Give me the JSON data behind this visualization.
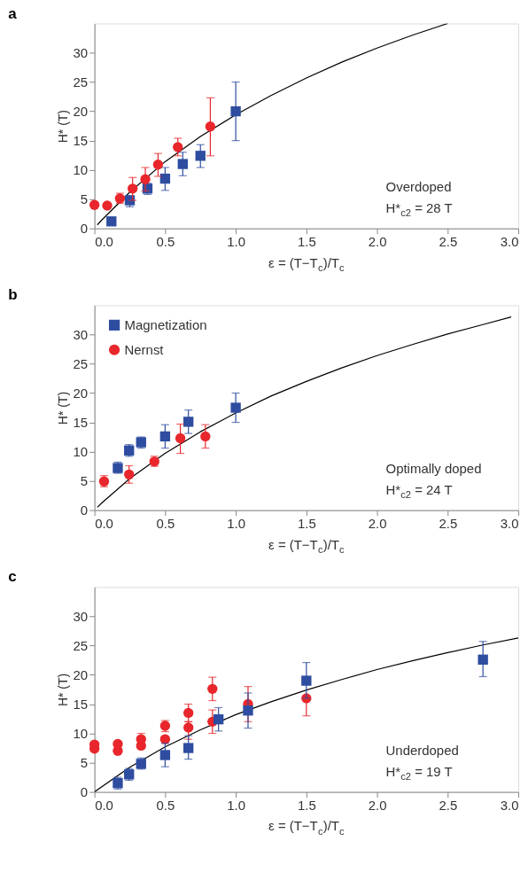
{
  "chart_data": [
    {
      "type": "scatter",
      "title": "a",
      "xlabel": "ε = (T−T$_{c}$)/T$_{c}$",
      "ylabel": "H* (T)",
      "xlim": [
        0,
        3
      ],
      "ylim": [
        0,
        35
      ],
      "xticks": [
        {
          "value": 0,
          "label": "0.0"
        },
        0.5,
        {
          "value": 1,
          "label": "1.0"
        },
        1.5,
        {
          "value": 2,
          "label": "2.0"
        },
        2.5,
        {
          "value": 3,
          "label": "3.0"
        }
      ],
      "yticks": [
        0,
        5,
        10,
        15,
        20,
        25,
        30
      ],
      "grid": false,
      "legend": false,
      "annotations": [
        "Overdoped",
        "H*$_{c2}$ = 28 T"
      ],
      "series": [
        {
          "type": "line",
          "color": "#000000",
          "marker": "none",
          "x": [
            0.02,
            0.05,
            0.25,
            0.5,
            0.75,
            1.0,
            1.25,
            1.5,
            1.75,
            2.0,
            2.25,
            2.5
          ],
          "values": [
            0.6,
            1.4,
            6.2,
            11.4,
            15.7,
            19.4,
            22.7,
            25.7,
            28.4,
            30.8,
            33.0,
            35.0
          ]
        },
        {
          "color": "#2e4da0",
          "marker": "square",
          "x": [
            0.12,
            0.25,
            0.375,
            0.5,
            0.625,
            0.75,
            1.0
          ],
          "values": [
            1.2,
            4.8,
            6.8,
            8.5,
            11.0,
            12.4,
            20.0
          ],
          "errors": [
            null,
            [
              3.7,
              5.6
            ],
            [
              5.8,
              7.7
            ],
            [
              6.5,
              10.4
            ],
            [
              9.0,
              13.0
            ],
            [
              10.4,
              14.3
            ],
            [
              15.0,
              25.0
            ]
          ]
        },
        {
          "color": "#e8262b",
          "marker": "circle",
          "x": [
            0.0,
            0.09,
            0.18,
            0.27,
            0.36,
            0.45,
            0.59,
            0.82
          ],
          "values": [
            4.0,
            3.9,
            5.1,
            6.8,
            8.4,
            10.9,
            13.9,
            17.4
          ],
          "errors": [
            null,
            null,
            [
              4.3,
              6.0
            ],
            [
              4.8,
              8.7
            ],
            [
              6.4,
              10.4
            ],
            [
              8.9,
              12.8
            ],
            [
              12.4,
              15.4
            ],
            [
              12.4,
              22.3
            ]
          ]
        }
      ]
    },
    {
      "type": "scatter",
      "title": "b",
      "xlabel": "ε = (T−T$_{c}$)/T$_{c}$",
      "ylabel": "H* (T)",
      "xlim": [
        0,
        3
      ],
      "ylim": [
        0,
        35
      ],
      "xticks": [
        {
          "value": 0,
          "label": "0.0"
        },
        0.5,
        {
          "value": 1,
          "label": "1.0"
        },
        1.5,
        {
          "value": 2,
          "label": "2.0"
        },
        2.5,
        {
          "value": 3,
          "label": "3.0"
        }
      ],
      "yticks": [
        0,
        5,
        10,
        15,
        20,
        25,
        30
      ],
      "grid": false,
      "legend": "top left",
      "annotations": [
        "Optimally doped",
        "H*$_{c2}$ = 24 T"
      ],
      "series": [
        {
          "type": "line",
          "color": "#000000",
          "marker": "none",
          "x": [
            0.02,
            0.05,
            0.25,
            0.5,
            0.75,
            1.0,
            1.25,
            1.5,
            1.75,
            2.0,
            2.25,
            2.5,
            2.75,
            2.95
          ],
          "values": [
            0.5,
            1.2,
            5.4,
            9.7,
            13.4,
            16.6,
            19.5,
            22.0,
            24.3,
            26.4,
            28.3,
            30.1,
            31.7,
            33.0
          ]
        },
        {
          "name": "Magnetization",
          "color": "#2e4da0",
          "marker": "square",
          "x": [
            0.165,
            0.245,
            0.33,
            0.5,
            0.665,
            1.0
          ],
          "values": [
            7.2,
            10.2,
            11.6,
            12.6,
            15.1,
            17.5
          ],
          "errors": [
            [
              6.3,
              8.2
            ],
            [
              9.2,
              11.2
            ],
            [
              10.6,
              12.5
            ],
            [
              10.6,
              14.6
            ],
            [
              13.1,
              17.1
            ],
            [
              15.0,
              20.0
            ]
          ]
        },
        {
          "name": "Nernst",
          "color": "#e8262b",
          "marker": "circle",
          "x": [
            0.068,
            0.245,
            0.424,
            0.608,
            0.785
          ],
          "values": [
            4.9,
            6.1,
            8.3,
            12.3,
            12.6
          ],
          "errors": [
            [
              4.0,
              5.9
            ],
            [
              4.6,
              7.6
            ],
            [
              7.5,
              9.2
            ],
            [
              9.7,
              14.7
            ],
            [
              10.6,
              14.6
            ]
          ]
        }
      ]
    },
    {
      "type": "scatter",
      "title": "c",
      "xlabel": "ε = (T−T$_{c}$)/T$_{c}$",
      "ylabel": "H* (T)",
      "xlim": [
        0,
        3
      ],
      "ylim": [
        0,
        35
      ],
      "xticks": [
        {
          "value": 0,
          "label": "0.0"
        },
        0.5,
        {
          "value": 1,
          "label": "1.0"
        },
        1.5,
        {
          "value": 2,
          "label": "2.0"
        },
        2.5,
        {
          "value": 3,
          "label": "3.0"
        }
      ],
      "yticks": [
        0,
        5,
        10,
        15,
        20,
        25,
        30
      ],
      "grid": false,
      "legend": false,
      "annotations": [
        "Underdoped",
        "H*$_{c2}$ = 19 T"
      ],
      "series": [
        {
          "type": "line",
          "color": "#000000",
          "marker": "none",
          "x": [
            0.0,
            0.25,
            0.5,
            0.75,
            1.0,
            1.25,
            1.5,
            1.75,
            2.0,
            2.25,
            2.5,
            2.75,
            3.0
          ],
          "values": [
            0.0,
            4.2,
            7.7,
            10.6,
            13.2,
            15.4,
            17.4,
            19.2,
            20.9,
            22.4,
            23.8,
            25.1,
            26.3
          ]
        },
        {
          "color": "#e8262b",
          "marker": "circle",
          "x": [
            0.0,
            0.165,
            0.33,
            0.5,
            0.665,
            0.835,
            1.087,
            1.5
          ],
          "values": [
            7.4,
            7.0,
            7.9,
            9.0,
            11.0,
            12.0,
            15.0,
            16.0
          ],
          "errors": [
            null,
            null,
            null,
            null,
            [
              9.0,
              12.0
            ],
            [
              10.0,
              14.0
            ],
            [
              12.0,
              18.0
            ],
            [
              13.0,
              16.0
            ]
          ]
        },
        {
          "color": "#2e4da0",
          "marker": "square",
          "x": [
            0.165,
            0.245,
            0.33,
            0.5,
            0.665,
            0.878,
            1.087,
            1.5,
            2.75
          ],
          "values": [
            1.5,
            3.0,
            4.8,
            6.3,
            7.5,
            12.4,
            13.9,
            19.0,
            22.6
          ],
          "errors": [
            [
              0.5,
              2.5
            ],
            [
              2.0,
              4.0
            ],
            [
              3.9,
              5.8
            ],
            [
              4.3,
              8.3
            ],
            [
              5.6,
              9.6
            ],
            [
              10.4,
              14.4
            ],
            [
              10.9,
              16.9
            ],
            [
              16.0,
              22.1
            ],
            [
              19.7,
              25.7
            ]
          ]
        },
        {
          "color": "#e8262b",
          "marker": "circle",
          "x": [
            0.0,
            0.165,
            0.33,
            0.5,
            0.665,
            0.835
          ],
          "values": [
            8.1,
            8.2,
            9.0,
            11.3,
            13.5,
            17.6
          ],
          "errors": [
            null,
            null,
            [
              9.0,
              10.0
            ],
            [
              10.3,
              12.2
            ],
            [
              12.0,
              15.0
            ],
            [
              15.6,
              19.6
            ]
          ]
        }
      ]
    }
  ]
}
